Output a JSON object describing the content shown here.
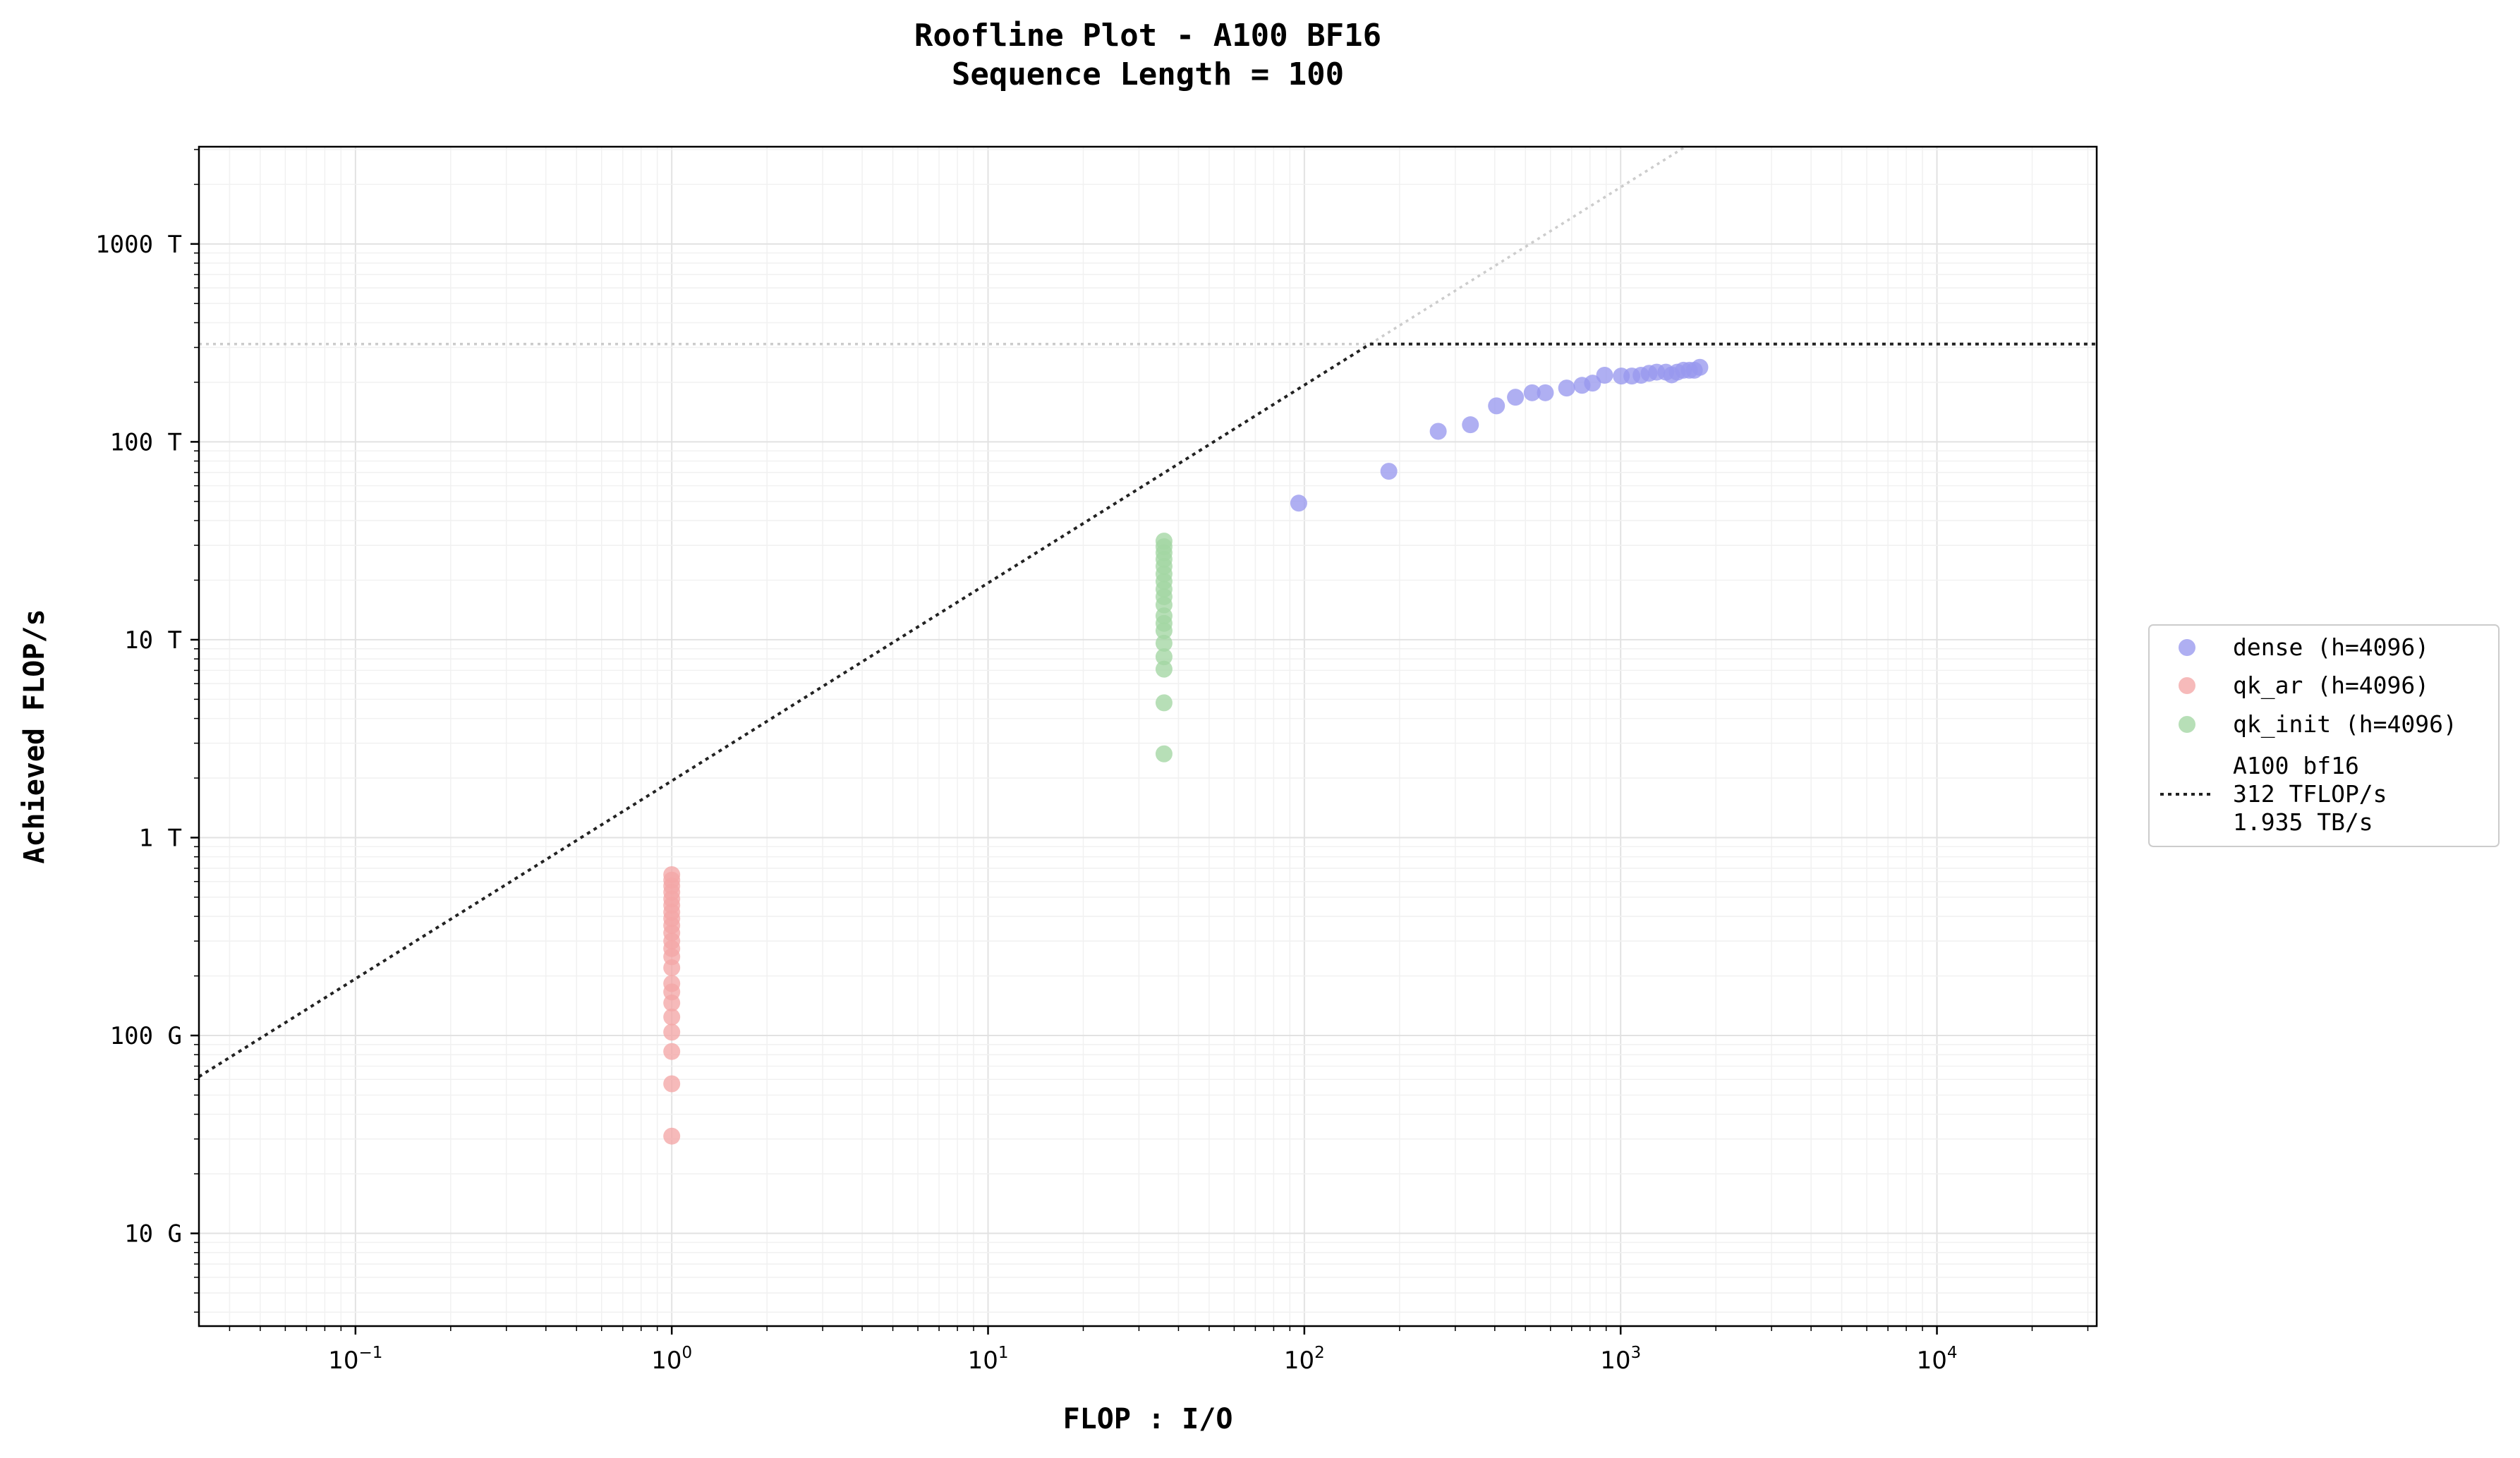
{
  "chart_data": {
    "type": "scatter",
    "title": "Roofline Plot - A100 BF16",
    "subtitle": "Sequence Length = 100",
    "xlabel": "FLOP : I/O",
    "ylabel": "Achieved FLOP/s",
    "x_scale": "log",
    "y_scale": "log",
    "xlim": [
      0.032,
      32000
    ],
    "ylim": [
      3400000000.0,
      3100000000000000.0
    ],
    "grid": true,
    "legend_position": "right, outside plot area",
    "x_ticks": [
      {
        "base": "10",
        "exp": "−1",
        "value": 0.1
      },
      {
        "base": "10",
        "exp": "0",
        "value": 1
      },
      {
        "base": "10",
        "exp": "1",
        "value": 10
      },
      {
        "base": "10",
        "exp": "2",
        "value": 100
      },
      {
        "base": "10",
        "exp": "3",
        "value": 1000
      },
      {
        "base": "10",
        "exp": "4",
        "value": 10000
      }
    ],
    "y_ticks": [
      {
        "label": "10 G",
        "value": 10000000000.0
      },
      {
        "label": "100 G",
        "value": 100000000000.0
      },
      {
        "label": "1 T",
        "value": 1000000000000.0
      },
      {
        "label": "10 T",
        "value": 10000000000000.0
      },
      {
        "label": "100 T",
        "value": 100000000000000.0
      },
      {
        "label": "1000 T",
        "value": 1000000000000000.0
      }
    ],
    "roofline": {
      "peak_flops": 312000000000000.0,
      "bandwidth": 1935000000000.0,
      "label_lines": [
        "A100 bf16",
        "312 TFLOP/s",
        "1.935 TB/s"
      ],
      "color": "#222222"
    },
    "series": [
      {
        "name": "dense (h=4096)",
        "color": "#9999ee",
        "points": [
          [
            96,
            49000000000000.0
          ],
          [
            185,
            71000000000000.0
          ],
          [
            265,
            113000000000000.0
          ],
          [
            335,
            122000000000000.0
          ],
          [
            405,
            152000000000000.0
          ],
          [
            465,
            168000000000000.0
          ],
          [
            525,
            177000000000000.0
          ],
          [
            578,
            177000000000000.0
          ],
          [
            675,
            187000000000000.0
          ],
          [
            755,
            193000000000000.0
          ],
          [
            815,
            198000000000000.0
          ],
          [
            890,
            217000000000000.0
          ],
          [
            1005,
            215000000000000.0
          ],
          [
            1085,
            215000000000000.0
          ],
          [
            1160,
            217000000000000.0
          ],
          [
            1230,
            222000000000000.0
          ],
          [
            1300,
            225000000000000.0
          ],
          [
            1390,
            225000000000000.0
          ],
          [
            1450,
            218000000000000.0
          ],
          [
            1510,
            225000000000000.0
          ],
          [
            1580,
            230000000000000.0
          ],
          [
            1650,
            230000000000000.0
          ],
          [
            1710,
            230000000000000.0
          ],
          [
            1780,
            238000000000000.0
          ]
        ]
      },
      {
        "name": "qk_ar (h=4096)",
        "color": "#f4a6a6",
        "points": [
          [
            1,
            31000000000.0
          ],
          [
            1,
            57000000000.0
          ],
          [
            1,
            83000000000.0
          ],
          [
            1,
            104000000000.0
          ],
          [
            1,
            124000000000.0
          ],
          [
            1,
            146000000000.0
          ],
          [
            1,
            166000000000.0
          ],
          [
            1,
            183000000000.0
          ],
          [
            1,
            220000000000.0
          ],
          [
            1,
            250000000000.0
          ],
          [
            1,
            275000000000.0
          ],
          [
            1,
            300000000000.0
          ],
          [
            1,
            330000000000.0
          ],
          [
            1,
            360000000000.0
          ],
          [
            1,
            390000000000.0
          ],
          [
            1,
            420000000000.0
          ],
          [
            1,
            455000000000.0
          ],
          [
            1,
            490000000000.0
          ],
          [
            1,
            530000000000.0
          ],
          [
            1,
            570000000000.0
          ],
          [
            1,
            610000000000.0
          ],
          [
            1,
            650000000000.0
          ]
        ]
      },
      {
        "name": "qk_init (h=4096)",
        "color": "#a3d6a3",
        "points": [
          [
            36,
            2650000000000.0
          ],
          [
            36,
            4800000000000.0
          ],
          [
            36,
            7100000000000.0
          ],
          [
            36,
            8200000000000.0
          ],
          [
            36,
            9600000000000.0
          ],
          [
            36,
            11100000000000.0
          ],
          [
            36,
            12100000000000.0
          ],
          [
            36,
            13200000000000.0
          ],
          [
            36,
            15000000000000.0
          ],
          [
            36,
            16500000000000.0
          ],
          [
            36,
            18000000000000.0
          ],
          [
            36,
            19700000000000.0
          ],
          [
            36,
            21500000000000.0
          ],
          [
            36,
            23500000000000.0
          ],
          [
            36,
            25500000000000.0
          ],
          [
            36,
            27500000000000.0
          ],
          [
            36,
            29500000000000.0
          ],
          [
            36,
            31500000000000.0
          ]
        ]
      }
    ]
  }
}
